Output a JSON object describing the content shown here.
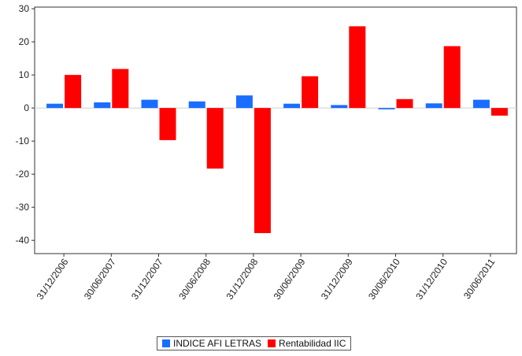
{
  "chart_data": {
    "type": "bar",
    "categories": [
      "31/12/2006",
      "30/06/2007",
      "31/12/2007",
      "30/06/2008",
      "31/12/2008",
      "30/06/2009",
      "31/12/2009",
      "30/06/2010",
      "31/12/2010",
      "30/06/2011"
    ],
    "series": [
      {
        "name": "INDICE AFI LETRAS",
        "color": "#1a6dff",
        "values": [
          1.3,
          1.7,
          2.5,
          2.0,
          3.8,
          1.3,
          0.9,
          -0.4,
          1.4,
          2.5
        ]
      },
      {
        "name": "Rentabilidad IIC",
        "color": "#ff0000",
        "values": [
          10.0,
          11.8,
          -9.7,
          -18.3,
          -37.8,
          9.6,
          24.7,
          2.7,
          18.7,
          -2.3
        ]
      }
    ],
    "title": "",
    "xlabel": "",
    "ylabel": "",
    "ylim": [
      -44,
      30.5
    ],
    "yticks": [
      30,
      20,
      10,
      0,
      -10,
      -20,
      -30,
      -40
    ],
    "grid": false,
    "legend_position": "bottom"
  }
}
